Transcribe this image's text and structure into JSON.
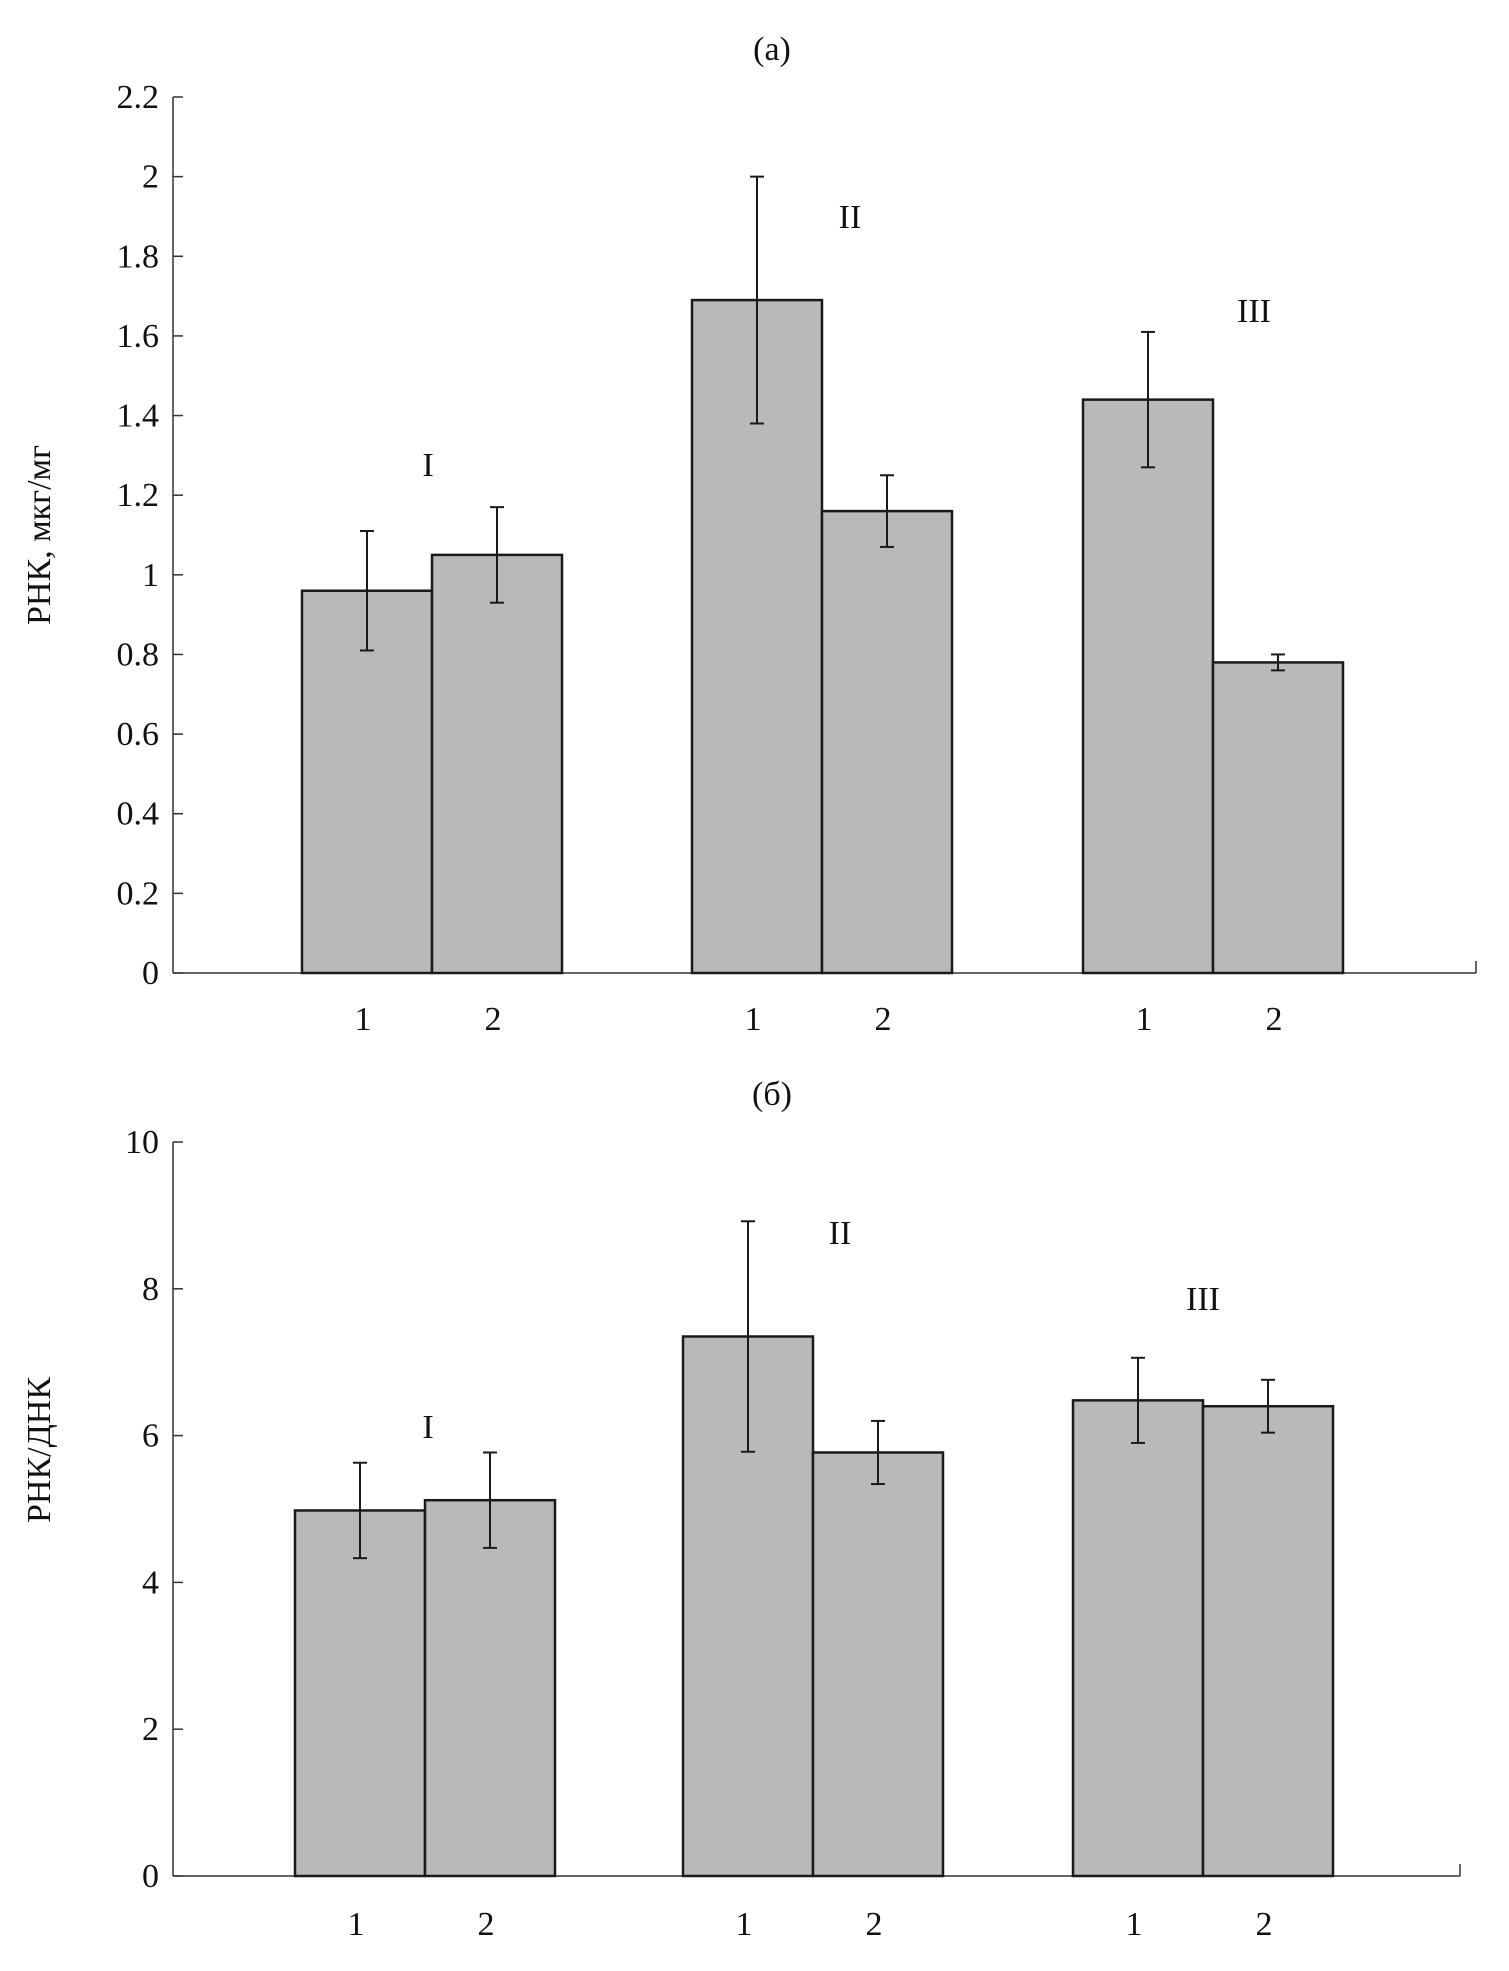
{
  "colors": {
    "bar_fill": "#b9b9b9",
    "bar_stroke": "#1a1a1a",
    "axis": "#333333",
    "background": "#ffffff"
  },
  "chart_data": [
    {
      "type": "bar",
      "title": "(а)",
      "xlabel": "",
      "ylabel": "РНК, мкг/мг",
      "ylim": [
        0,
        2.2
      ],
      "yticks": [
        "0",
        "0.2",
        "0.4",
        "0.6",
        "0.8",
        "1",
        "1.2",
        "1.4",
        "1.6",
        "1.8",
        "2",
        "2.2"
      ],
      "groups": [
        {
          "label": "I",
          "bars": [
            {
              "category": "1",
              "value": 0.96,
              "error": 0.15
            },
            {
              "category": "2",
              "value": 1.05,
              "error": 0.12
            }
          ]
        },
        {
          "label": "II",
          "bars": [
            {
              "category": "1",
              "value": 1.69,
              "error": 0.31
            },
            {
              "category": "2",
              "value": 1.16,
              "error": 0.09
            }
          ]
        },
        {
          "label": "III",
          "bars": [
            {
              "category": "1",
              "value": 1.44,
              "error": 0.17
            },
            {
              "category": "2",
              "value": 0.78,
              "error": 0.02
            }
          ]
        }
      ]
    },
    {
      "type": "bar",
      "title": "(б)",
      "xlabel": "",
      "ylabel": "РНК/ДНК",
      "ylim": [
        0,
        10
      ],
      "yticks": [
        "0",
        "2",
        "4",
        "6",
        "8",
        "10"
      ],
      "groups": [
        {
          "label": "I",
          "bars": [
            {
              "category": "1",
              "value": 4.98,
              "error": 0.65
            },
            {
              "category": "2",
              "value": 5.12,
              "error": 0.65
            }
          ]
        },
        {
          "label": "II",
          "bars": [
            {
              "category": "1",
              "value": 7.35,
              "error": 1.57
            },
            {
              "category": "2",
              "value": 5.77,
              "error": 0.43
            }
          ]
        },
        {
          "label": "III",
          "bars": [
            {
              "category": "1",
              "value": 6.48,
              "error": 0.58
            },
            {
              "category": "2",
              "value": 6.4,
              "error": 0.36
            }
          ]
        }
      ]
    }
  ]
}
